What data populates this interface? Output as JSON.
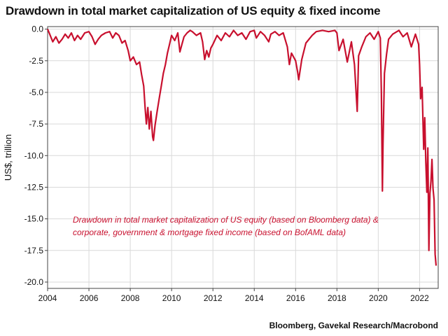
{
  "title": "Drawdown in total market capitalization of US equity & fixed income",
  "source": "Bloomberg, Gavekal Research/Macrobond",
  "colors": {
    "series": "#c8102e",
    "grid": "#d9d9d9",
    "axis": "#444444"
  },
  "chart_data": {
    "type": "line",
    "title": "Drawdown in total market capitalization of US equity & fixed income",
    "ylabel": "US$, trillion",
    "xlabel": "",
    "xlim": [
      2004,
      2022.9
    ],
    "ylim": [
      -20.5,
      0.2
    ],
    "x_ticks": [
      2004,
      2006,
      2008,
      2010,
      2012,
      2014,
      2016,
      2018,
      2020,
      2022
    ],
    "x_tick_labels": [
      "2004",
      "2006",
      "2008",
      "2010",
      "2012",
      "2014",
      "2016",
      "2018",
      "2020",
      "2022"
    ],
    "y_ticks": [
      0,
      -2.5,
      -5,
      -7.5,
      -10,
      -12.5,
      -15,
      -17.5,
      -20
    ],
    "y_tick_labels": [
      "0.0",
      "-2.5",
      "-5.0",
      "-7.5",
      "-10.0",
      "-12.5",
      "-15.0",
      "-17.5",
      "-20.0"
    ],
    "grid": true,
    "annotation": [
      "Drawdown in total market capitalization of US equity (based on Bloomberg data) &",
      "corporate, government & mortgage fixed income (based on BofAML data)"
    ],
    "series": [
      {
        "x": [
          2004.0,
          2004.1,
          2004.25,
          2004.4,
          2004.55,
          2004.7,
          2004.85,
          2005.0,
          2005.15,
          2005.3,
          2005.45,
          2005.6,
          2005.8,
          2006.0,
          2006.15,
          2006.3,
          2006.45,
          2006.6,
          2006.8,
          2007.0,
          2007.15,
          2007.3,
          2007.45,
          2007.6,
          2007.75,
          2007.9,
          2008.0,
          2008.15,
          2008.3,
          2008.45,
          2008.55,
          2008.65,
          2008.72,
          2008.78,
          2008.85,
          2008.92,
          2009.0,
          2009.08,
          2009.12,
          2009.2,
          2009.3,
          2009.4,
          2009.5,
          2009.6,
          2009.7,
          2009.8,
          2009.9,
          2010.0,
          2010.15,
          2010.3,
          2010.4,
          2010.5,
          2010.6,
          2010.75,
          2010.9,
          2011.0,
          2011.2,
          2011.4,
          2011.5,
          2011.6,
          2011.7,
          2011.8,
          2011.9,
          2012.0,
          2012.2,
          2012.4,
          2012.6,
          2012.8,
          2013.0,
          2013.2,
          2013.4,
          2013.6,
          2013.8,
          2014.0,
          2014.1,
          2014.3,
          2014.5,
          2014.7,
          2014.8,
          2015.0,
          2015.2,
          2015.4,
          2015.6,
          2015.7,
          2015.8,
          2016.0,
          2016.1,
          2016.15,
          2016.3,
          2016.5,
          2016.8,
          2017.0,
          2017.3,
          2017.6,
          2017.9,
          2018.0,
          2018.1,
          2018.3,
          2018.5,
          2018.7,
          2018.85,
          2018.98,
          2019.05,
          2019.2,
          2019.4,
          2019.6,
          2019.8,
          2020.0,
          2020.1,
          2020.15,
          2020.2,
          2020.23,
          2020.3,
          2020.4,
          2020.5,
          2020.7,
          2020.9,
          2021.0,
          2021.2,
          2021.4,
          2021.6,
          2021.8,
          2021.95,
          2022.0,
          2022.05,
          2022.12,
          2022.2,
          2022.25,
          2022.3,
          2022.35,
          2022.4,
          2022.45,
          2022.5,
          2022.55,
          2022.6,
          2022.65,
          2022.7,
          2022.75,
          2022.8
        ],
        "values": [
          0.0,
          -0.4,
          -1.0,
          -0.6,
          -1.1,
          -0.8,
          -0.4,
          -0.7,
          -0.3,
          -0.9,
          -0.5,
          -0.8,
          -0.3,
          -0.2,
          -0.6,
          -1.2,
          -0.8,
          -0.5,
          -0.3,
          -0.2,
          -0.7,
          -0.3,
          -0.5,
          -1.1,
          -0.9,
          -1.7,
          -2.5,
          -2.2,
          -2.8,
          -2.6,
          -3.6,
          -4.5,
          -6.3,
          -7.5,
          -6.2,
          -7.9,
          -6.5,
          -8.5,
          -8.8,
          -7.6,
          -6.5,
          -5.5,
          -4.5,
          -3.5,
          -2.8,
          -1.9,
          -1.2,
          -0.5,
          -0.9,
          -0.3,
          -1.8,
          -1.2,
          -0.6,
          -0.3,
          -0.1,
          -0.2,
          -0.5,
          -0.3,
          -1.0,
          -2.4,
          -1.7,
          -2.2,
          -1.5,
          -1.2,
          -0.5,
          -0.9,
          -0.3,
          -0.6,
          -0.1,
          -0.5,
          -0.3,
          -0.8,
          -0.2,
          -0.1,
          -0.7,
          -0.2,
          -0.5,
          -1.0,
          -0.4,
          -0.2,
          -0.5,
          -0.3,
          -1.4,
          -2.8,
          -1.9,
          -2.5,
          -3.4,
          -4.0,
          -2.4,
          -1.1,
          -0.5,
          -0.2,
          -0.1,
          -0.2,
          -0.1,
          -0.3,
          -1.7,
          -0.8,
          -2.6,
          -1.0,
          -2.8,
          -6.5,
          -2.1,
          -1.4,
          -0.6,
          -0.3,
          -0.8,
          -0.2,
          -0.7,
          -5.0,
          -12.8,
          -9.0,
          -3.5,
          -2.0,
          -0.8,
          -0.4,
          -0.2,
          -0.1,
          -0.6,
          -0.3,
          -1.4,
          -0.4,
          -1.2,
          -2.8,
          -5.5,
          -4.6,
          -9.5,
          -7.0,
          -10.5,
          -12.9,
          -9.4,
          -17.5,
          -13.0,
          -12.0,
          -10.3,
          -12.6,
          -13.5,
          -17.8,
          -18.7
        ]
      }
    ]
  }
}
